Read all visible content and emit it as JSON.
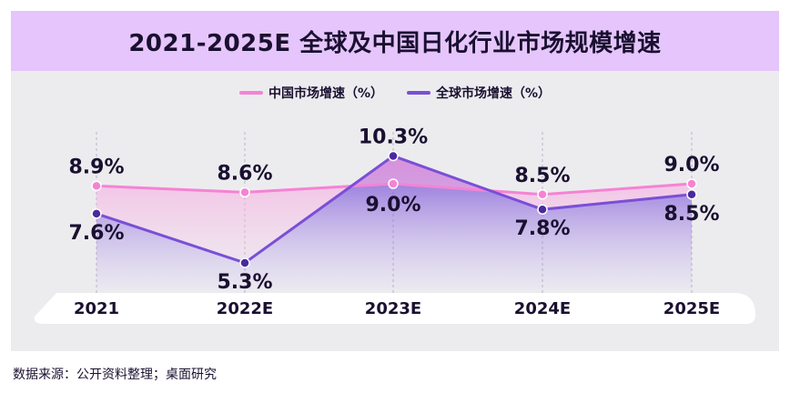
{
  "chart_data": {
    "type": "line",
    "title": "2021-2025E 全球及中国日化行业市场规模增速",
    "categories": [
      "2021",
      "2022E",
      "2023E",
      "2024E",
      "2025E"
    ],
    "series": [
      {
        "name": "中国市场增速（%）",
        "values": [
          8.9,
          8.6,
          9.0,
          8.5,
          9.0
        ],
        "labels": [
          "8.9%",
          "8.6%",
          "9.0%",
          "8.5%",
          "9.0%"
        ],
        "color": "#f583d3"
      },
      {
        "name": "全球市场增速（%）",
        "values": [
          7.6,
          5.3,
          10.3,
          7.8,
          8.5
        ],
        "labels": [
          "7.6%",
          "5.3%",
          "10.3%",
          "7.8%",
          "8.5%"
        ],
        "color": "#7a4fd6"
      }
    ],
    "legend_position": "top-center",
    "grid": false,
    "xlabel": "",
    "ylabel": ""
  },
  "source": "数据来源：公开资料整理；桌面研究"
}
